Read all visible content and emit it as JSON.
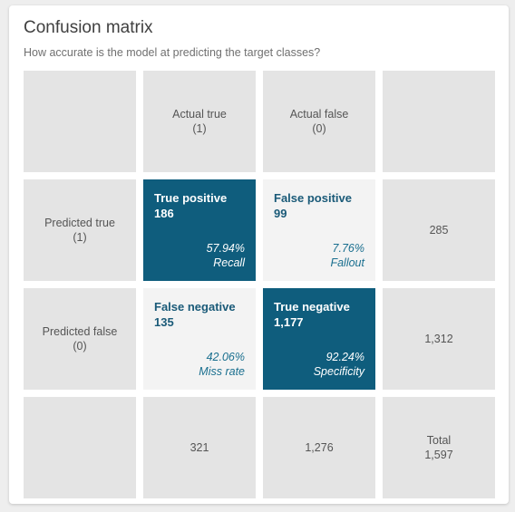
{
  "header": {
    "title": "Confusion matrix",
    "subtitle": "How accurate is the model at predicting the target classes?"
  },
  "columns": {
    "actual_true": {
      "label": "Actual true",
      "value": "(1)"
    },
    "actual_false": {
      "label": "Actual false",
      "value": "(0)"
    }
  },
  "rows": {
    "predicted_true": {
      "label": "Predicted true",
      "value": "(1)"
    },
    "predicted_false": {
      "label": "Predicted false",
      "value": "(0)"
    }
  },
  "cells": {
    "tp": {
      "label": "True positive",
      "count": "186",
      "percent": "57.94%",
      "metric": "Recall"
    },
    "fp": {
      "label": "False positive",
      "count": "99",
      "percent": "7.76%",
      "metric": "Fallout"
    },
    "fn": {
      "label": "False negative",
      "count": "135",
      "percent": "42.06%",
      "metric": "Miss rate"
    },
    "tn": {
      "label": "True negative",
      "count": "1,177",
      "percent": "92.24%",
      "metric": "Specificity"
    }
  },
  "totals": {
    "row_predicted_true": "285",
    "row_predicted_false": "1,312",
    "col_actual_true": "321",
    "col_actual_false": "1,276",
    "total_label": "Total",
    "total_value": "1,597"
  },
  "colors": {
    "highlight": "#0f5d7d",
    "neutral": "#e4e4e4",
    "light": "#f3f3f3"
  }
}
